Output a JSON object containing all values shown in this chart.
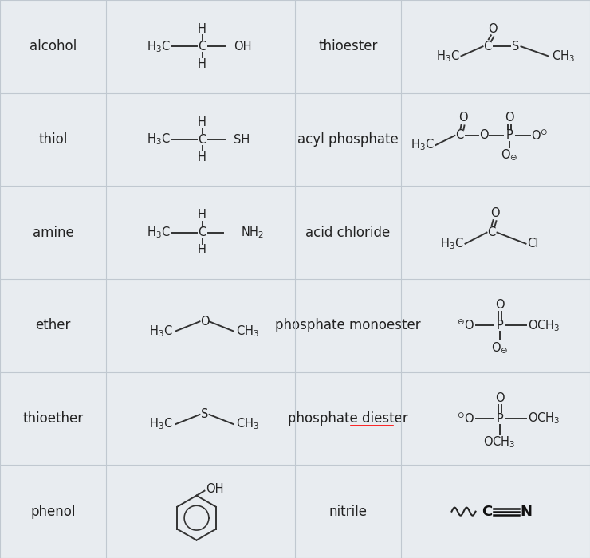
{
  "background_color": "#e8ecf0",
  "line_color": "#c0c8d0",
  "fig_width": 7.4,
  "fig_height": 7.0,
  "dpi": 100,
  "row_names_left": [
    "alcohol",
    "thiol",
    "amine",
    "ether",
    "thioether",
    "phenol"
  ],
  "row_names_right": [
    "thioester",
    "acyl phosphate",
    "acid chloride",
    "phosphate monoester",
    "phosphate diester",
    "nitrile"
  ]
}
